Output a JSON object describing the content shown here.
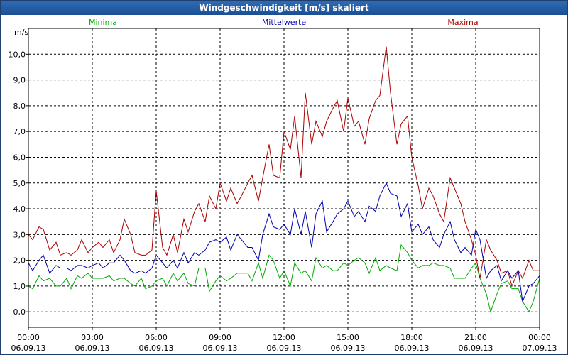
{
  "chart_data": {
    "type": "line",
    "title": "Windgeschwindigkeit [m/s] skaliert",
    "ylabel": "m/s",
    "ylim": [
      -0.6,
      11.0
    ],
    "xlim": [
      0,
      24
    ],
    "yticks": [
      "0,0",
      "1,0",
      "2,0",
      "3,0",
      "4,0",
      "5,0",
      "6,0",
      "7,0",
      "8,0",
      "9,0",
      "10,0"
    ],
    "xticks": [
      {
        "time": "00:00",
        "date": "06.09.13"
      },
      {
        "time": "03:00",
        "date": "06.09.13"
      },
      {
        "time": "06:00",
        "date": "06.09.13"
      },
      {
        "time": "09:00",
        "date": "06.09.13"
      },
      {
        "time": "12:00",
        "date": "06.09.13"
      },
      {
        "time": "15:00",
        "date": "06.09.13"
      },
      {
        "time": "18:00",
        "date": "06.09.13"
      },
      {
        "time": "21:00",
        "date": "06.09.13"
      },
      {
        "time": "00:00",
        "date": "07.09.13"
      }
    ],
    "grid": true,
    "series": [
      {
        "name": "Minima",
        "color": "#00aa00",
        "x": [
          0.0,
          0.2,
          0.5,
          0.7,
          1.0,
          1.3,
          1.5,
          1.8,
          2.0,
          2.3,
          2.5,
          2.8,
          3.0,
          3.3,
          3.5,
          3.8,
          4.0,
          4.3,
          4.5,
          4.8,
          5.0,
          5.3,
          5.5,
          5.8,
          6.0,
          6.3,
          6.5,
          6.8,
          7.0,
          7.3,
          7.5,
          7.8,
          8.0,
          8.3,
          8.5,
          8.8,
          9.0,
          9.3,
          9.5,
          9.8,
          10.0,
          10.3,
          10.5,
          10.8,
          11.0,
          11.3,
          11.5,
          11.8,
          12.0,
          12.3,
          12.5,
          12.8,
          13.0,
          13.3,
          13.5,
          13.8,
          14.0,
          14.3,
          14.5,
          14.8,
          15.0,
          15.3,
          15.5,
          15.8,
          16.0,
          16.3,
          16.5,
          16.8,
          17.0,
          17.3,
          17.5,
          17.8,
          18.0,
          18.3,
          18.5,
          18.8,
          19.0,
          19.3,
          19.5,
          19.8,
          20.0,
          20.3,
          20.5,
          20.8,
          21.0,
          21.2,
          21.5,
          21.7,
          22.0,
          22.2,
          22.5,
          22.7,
          23.0,
          23.2,
          23.5,
          23.7,
          24.0
        ],
        "y": [
          1.0,
          0.9,
          1.4,
          1.2,
          1.3,
          1.0,
          1.0,
          1.3,
          0.9,
          1.4,
          1.3,
          1.5,
          1.3,
          1.3,
          1.3,
          1.4,
          1.2,
          1.3,
          1.3,
          1.1,
          1.0,
          1.3,
          0.9,
          1.0,
          1.2,
          1.3,
          1.0,
          1.5,
          1.2,
          1.5,
          1.1,
          1.0,
          1.7,
          1.7,
          0.8,
          1.2,
          1.4,
          1.2,
          1.3,
          1.5,
          1.5,
          1.5,
          1.2,
          1.9,
          1.3,
          2.2,
          2.0,
          1.3,
          1.6,
          1.0,
          1.9,
          1.5,
          1.6,
          1.2,
          2.1,
          1.7,
          1.8,
          1.6,
          1.6,
          1.9,
          1.8,
          2.0,
          2.1,
          1.9,
          1.5,
          2.1,
          1.6,
          1.8,
          1.7,
          1.6,
          2.6,
          2.3,
          2.0,
          1.7,
          1.8,
          1.8,
          1.9,
          1.8,
          1.8,
          1.7,
          1.3,
          1.3,
          1.3,
          1.7,
          1.9,
          1.3,
          0.7,
          0.0,
          0.7,
          1.1,
          1.2,
          0.9,
          0.9,
          0.4,
          0.0,
          0.4,
          1.3
        ]
      },
      {
        "name": "Mittelwerte",
        "color": "#0000aa",
        "x": [
          0.0,
          0.2,
          0.5,
          0.7,
          1.0,
          1.3,
          1.5,
          1.8,
          2.0,
          2.3,
          2.5,
          2.8,
          3.0,
          3.3,
          3.5,
          3.8,
          4.0,
          4.3,
          4.5,
          4.8,
          5.0,
          5.3,
          5.5,
          5.8,
          6.0,
          6.3,
          6.5,
          6.8,
          7.0,
          7.3,
          7.5,
          7.8,
          8.0,
          8.3,
          8.5,
          8.8,
          9.0,
          9.3,
          9.5,
          9.8,
          10.0,
          10.3,
          10.5,
          10.8,
          11.0,
          11.3,
          11.5,
          11.8,
          12.0,
          12.3,
          12.5,
          12.8,
          13.0,
          13.3,
          13.5,
          13.8,
          14.0,
          14.3,
          14.5,
          14.8,
          15.0,
          15.3,
          15.5,
          15.8,
          16.0,
          16.3,
          16.5,
          16.8,
          17.0,
          17.3,
          17.5,
          17.8,
          18.0,
          18.3,
          18.5,
          18.8,
          19.0,
          19.3,
          19.5,
          19.8,
          20.0,
          20.3,
          20.5,
          20.8,
          21.0,
          21.2,
          21.5,
          21.7,
          22.0,
          22.2,
          22.5,
          22.7,
          23.0,
          23.2,
          23.5,
          23.7,
          24.0
        ],
        "y": [
          1.9,
          1.6,
          2.0,
          2.2,
          1.5,
          1.8,
          1.7,
          1.7,
          1.6,
          1.8,
          1.8,
          1.7,
          1.8,
          1.9,
          1.7,
          1.9,
          1.9,
          2.2,
          2.0,
          1.6,
          1.5,
          1.6,
          1.5,
          1.7,
          2.2,
          1.9,
          1.7,
          2.0,
          1.7,
          2.3,
          1.9,
          2.3,
          2.2,
          2.4,
          2.7,
          2.8,
          2.7,
          2.9,
          2.4,
          3.0,
          2.8,
          2.5,
          2.5,
          2.0,
          3.0,
          3.8,
          3.3,
          3.2,
          3.4,
          3.0,
          4.0,
          3.0,
          3.9,
          2.5,
          3.8,
          4.3,
          3.1,
          3.5,
          3.8,
          4.0,
          4.3,
          3.7,
          3.9,
          3.5,
          4.1,
          3.9,
          4.5,
          5.0,
          4.6,
          4.5,
          3.7,
          4.2,
          3.1,
          3.4,
          3.0,
          3.3,
          2.8,
          2.5,
          3.0,
          3.5,
          2.8,
          2.3,
          2.5,
          2.2,
          3.2,
          2.8,
          1.3,
          1.6,
          1.8,
          1.2,
          1.6,
          1.3,
          1.6,
          0.4,
          1.0,
          1.1,
          1.4
        ]
      },
      {
        "name": "Maxima",
        "color": "#aa0000",
        "x": [
          0.0,
          0.2,
          0.5,
          0.7,
          1.0,
          1.3,
          1.5,
          1.8,
          2.0,
          2.3,
          2.5,
          2.8,
          3.0,
          3.3,
          3.5,
          3.8,
          4.0,
          4.3,
          4.5,
          4.8,
          5.0,
          5.3,
          5.5,
          5.8,
          6.0,
          6.3,
          6.5,
          6.8,
          7.0,
          7.3,
          7.5,
          7.8,
          8.0,
          8.3,
          8.5,
          8.8,
          9.0,
          9.3,
          9.5,
          9.8,
          10.0,
          10.3,
          10.5,
          10.8,
          11.0,
          11.3,
          11.5,
          11.8,
          12.0,
          12.3,
          12.5,
          12.8,
          13.0,
          13.3,
          13.5,
          13.8,
          14.0,
          14.3,
          14.5,
          14.8,
          15.0,
          15.3,
          15.5,
          15.8,
          16.0,
          16.3,
          16.5,
          16.8,
          17.0,
          17.3,
          17.5,
          17.8,
          18.0,
          18.3,
          18.5,
          18.8,
          19.0,
          19.3,
          19.5,
          19.8,
          20.0,
          20.3,
          20.5,
          20.8,
          21.0,
          21.2,
          21.5,
          21.7,
          22.0,
          22.2,
          22.5,
          22.7,
          23.0,
          23.2,
          23.5,
          23.7,
          24.0
        ],
        "y": [
          3.0,
          2.8,
          3.3,
          3.2,
          2.4,
          2.7,
          2.2,
          2.3,
          2.2,
          2.4,
          2.8,
          2.3,
          2.5,
          2.7,
          2.5,
          2.8,
          2.3,
          2.8,
          3.6,
          3.0,
          2.3,
          2.2,
          2.2,
          2.4,
          4.7,
          2.5,
          2.2,
          3.0,
          2.3,
          3.6,
          3.1,
          3.9,
          4.2,
          3.5,
          4.5,
          4.0,
          5.0,
          4.3,
          4.8,
          4.2,
          4.5,
          5.0,
          5.3,
          4.3,
          5.2,
          6.5,
          5.3,
          5.2,
          7.0,
          6.3,
          7.6,
          5.2,
          8.5,
          6.5,
          7.4,
          6.8,
          7.4,
          7.9,
          8.2,
          7.0,
          8.3,
          7.2,
          7.4,
          6.5,
          7.5,
          8.2,
          8.4,
          10.3,
          8.5,
          6.5,
          7.3,
          7.6,
          6.0,
          4.9,
          4.0,
          4.8,
          4.5,
          3.8,
          3.5,
          5.2,
          4.8,
          4.2,
          3.5,
          2.8,
          2.2,
          1.3,
          2.8,
          2.4,
          2.0,
          1.5,
          1.6,
          1.0,
          1.6,
          1.3,
          2.0,
          1.6,
          1.6
        ]
      }
    ]
  }
}
